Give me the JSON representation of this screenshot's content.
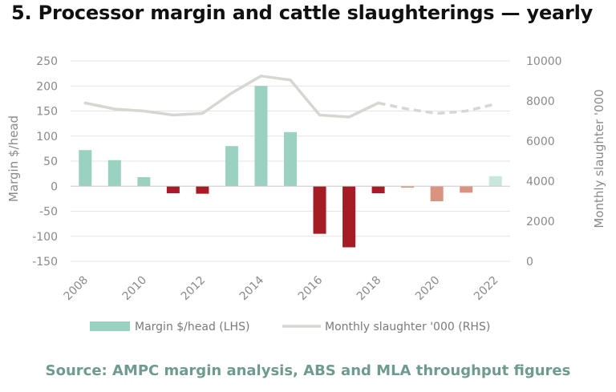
{
  "title": "5. Processor margin and cattle slaughterings — yearly",
  "source": "Source: AMPC margin analysis, ABS and MLA throughput figures",
  "chart_data": {
    "type": "bar",
    "categories": [
      "2008",
      "2009",
      "2010",
      "2011",
      "2012",
      "2013",
      "2014",
      "2015",
      "2016",
      "2017",
      "2018",
      "2019",
      "2020",
      "2021",
      "2022"
    ],
    "x_tick_labels": [
      "2008",
      "2010",
      "2012",
      "2014",
      "2016",
      "2018",
      "2020",
      "2022"
    ],
    "ylabel": "Margin $/head",
    "y2label": "Monthly slaughter '000",
    "ylim": [
      -150,
      250
    ],
    "yticks": [
      250,
      200,
      150,
      100,
      50,
      0,
      -50,
      -100,
      -150
    ],
    "y2lim": [
      0,
      10000
    ],
    "y2ticks": [
      10000,
      8000,
      6000,
      4000,
      2000,
      0
    ],
    "grid": true,
    "legend_position": "bottom",
    "series": [
      {
        "name": "Margin $/head (LHS)",
        "type": "bar",
        "axis": "left",
        "values": [
          72,
          52,
          18,
          -14,
          -15,
          80,
          200,
          108,
          -95,
          -122,
          -14,
          -3,
          -30,
          -13,
          20
        ],
        "colors": [
          "#9ad1c0",
          "#9ad1c0",
          "#9ad1c0",
          "#a51c24",
          "#a51c24",
          "#9ad1c0",
          "#9ad1c0",
          "#9ad1c0",
          "#a51c24",
          "#a51c24",
          "#a51c24",
          "#d9937f",
          "#d9937f",
          "#d9937f",
          "#c9e7dc"
        ]
      },
      {
        "name": "Monthly slaughter '000 (RHS)",
        "type": "line",
        "axis": "right",
        "color": "#d6d6d2",
        "values": [
          7900,
          7600,
          7500,
          7300,
          7380,
          8400,
          9250,
          9050,
          7300,
          7200,
          7900,
          7600,
          7380,
          7500,
          7850
        ],
        "dashed_from_index": 10
      }
    ]
  }
}
